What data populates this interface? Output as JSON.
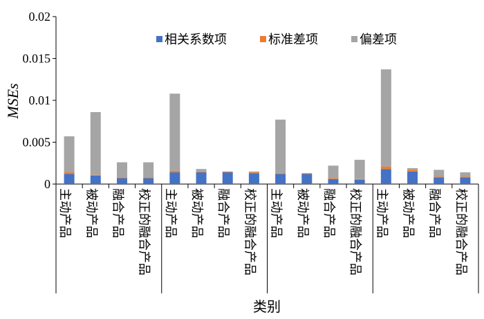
{
  "chart_data": {
    "type": "bar",
    "stacked": true,
    "title": "",
    "xlabel": "类别",
    "ylabel": "MSEs",
    "ylim": [
      0,
      0.02
    ],
    "yticks": [
      "0",
      "0.005",
      "0.01",
      "0.015",
      "0.02"
    ],
    "ytick_values": [
      0,
      0.005,
      0.01,
      0.015,
      0.02
    ],
    "grid": false,
    "legend_position": "top-right",
    "categories": [
      "主动产品",
      "被动产品",
      "融合产品",
      "校正的融合产品",
      "主动产品",
      "被动产品",
      "融合产品",
      "校正的融合产品",
      "主动产品",
      "被动产品",
      "融合产品",
      "校正的融合产品",
      "主动产品",
      "被动产品",
      "融合产品",
      "校正的融合产品"
    ],
    "series": [
      {
        "name": "相关系数项",
        "color": "#4472C4",
        "values": [
          0.0012,
          0.001,
          0.0007,
          0.0007,
          0.0014,
          0.0014,
          0.0014,
          0.0013,
          0.0012,
          0.0012,
          0.0006,
          0.0005,
          0.0018,
          0.0015,
          0.0008,
          0.0008
        ]
      },
      {
        "name": "标准差项",
        "color": "#ED7D31",
        "values": [
          0.0002,
          0.0001,
          0.0001,
          0.0001,
          0.0002,
          0.0001,
          0.0001,
          0.0001,
          0.0001,
          0.0001,
          0.0001,
          0.0001,
          0.0003,
          0.0002,
          0.0001,
          0.0001
        ]
      },
      {
        "name": "偏差项",
        "color": "#A5A5A5",
        "values": [
          0.0043,
          0.0075,
          0.0018,
          0.0018,
          0.0092,
          0.0003,
          0.0,
          0.0001,
          0.0064,
          0.0,
          0.0015,
          0.0023,
          0.0116,
          0.0002,
          0.0008,
          0.0005
        ]
      }
    ]
  }
}
